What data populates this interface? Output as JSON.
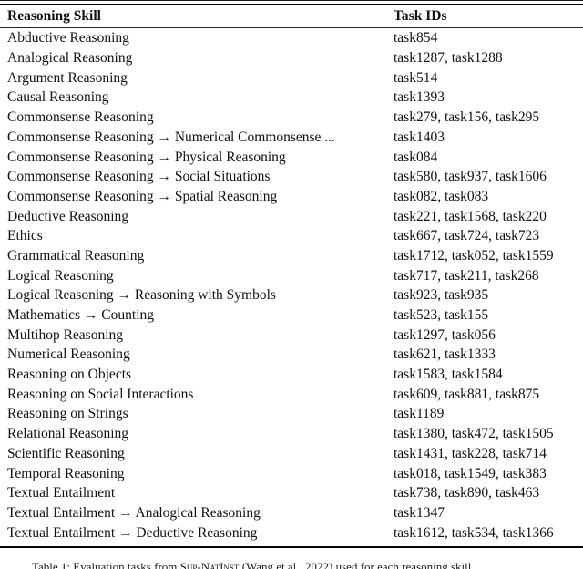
{
  "colors": {
    "background": "#ffffff",
    "text": "#111111",
    "rule": "#000000"
  },
  "table": {
    "columns": [
      "Reasoning Skill",
      "Task IDs"
    ],
    "rows": [
      {
        "skill": "Abductive Reasoning",
        "task_ids": "task854"
      },
      {
        "skill": "Analogical Reasoning",
        "task_ids": "task1287, task1288"
      },
      {
        "skill": "Argument Reasoning",
        "task_ids": "task514"
      },
      {
        "skill": "Causal Reasoning",
        "task_ids": "task1393"
      },
      {
        "skill": "Commonsense Reasoning",
        "task_ids": "task279, task156, task295"
      },
      {
        "skill": "Commonsense Reasoning → Numerical Commonsense ...",
        "task_ids": "task1403"
      },
      {
        "skill": "Commonsense Reasoning → Physical Reasoning",
        "task_ids": "task084"
      },
      {
        "skill": "Commonsense Reasoning → Social Situations",
        "task_ids": "task580, task937, task1606"
      },
      {
        "skill": "Commonsense Reasoning → Spatial Reasoning",
        "task_ids": "task082, task083"
      },
      {
        "skill": "Deductive Reasoning",
        "task_ids": "task221, task1568, task220"
      },
      {
        "skill": "Ethics",
        "task_ids": "task667, task724, task723"
      },
      {
        "skill": "Grammatical Reasoning",
        "task_ids": "task1712, task052, task1559"
      },
      {
        "skill": "Logical Reasoning",
        "task_ids": "task717, task211, task268"
      },
      {
        "skill": "Logical Reasoning → Reasoning with Symbols",
        "task_ids": "task923, task935"
      },
      {
        "skill": "Mathematics → Counting",
        "task_ids": "task523, task155"
      },
      {
        "skill": "Multihop Reasoning",
        "task_ids": "task1297, task056"
      },
      {
        "skill": "Numerical Reasoning",
        "task_ids": "task621, task1333"
      },
      {
        "skill": "Reasoning on Objects",
        "task_ids": "task1583, task1584"
      },
      {
        "skill": "Reasoning on Social Interactions",
        "task_ids": "task609, task881, task875"
      },
      {
        "skill": "Reasoning on Strings",
        "task_ids": "task1189"
      },
      {
        "skill": "Relational Reasoning",
        "task_ids": "task1380, task472, task1505"
      },
      {
        "skill": "Scientific Reasoning",
        "task_ids": "task1431, task228, task714"
      },
      {
        "skill": "Temporal Reasoning",
        "task_ids": "task018, task1549, task383"
      },
      {
        "skill": "Textual Entailment",
        "task_ids": "task738, task890, task463"
      },
      {
        "skill": "Textual Entailment → Analogical Reasoning",
        "task_ids": "task1347"
      },
      {
        "skill": "Textual Entailment → Deductive Reasoning",
        "task_ids": "task1612, task534, task1366"
      }
    ]
  },
  "caption": {
    "prefix": "Table 1: Evaluation tasks from ",
    "benchmark": "Sup-NatInst",
    "suffix": " (Wang et al., 2022) used for each reasoning skill."
  }
}
